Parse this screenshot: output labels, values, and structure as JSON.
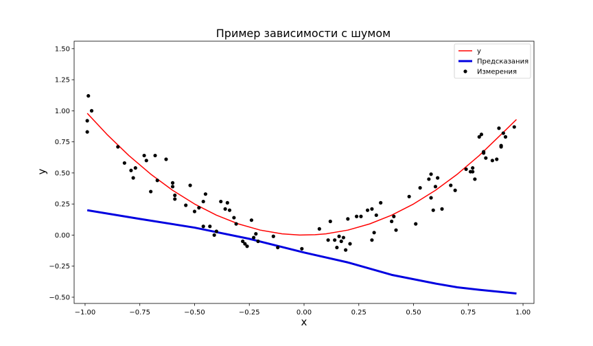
{
  "chart_data": {
    "type": "scatter",
    "title": "Пример зависимости с шумом",
    "xlabel": "x",
    "ylabel": "y",
    "xlim": [
      -1.05,
      1.05
    ],
    "ylim": [
      -0.55,
      1.56
    ],
    "xticks": [
      "−1.00",
      "−0.75",
      "−0.50",
      "−0.25",
      "0.00",
      "0.25",
      "0.50",
      "0.75",
      "1.00"
    ],
    "xtick_values": [
      -1.0,
      -0.75,
      -0.5,
      -0.25,
      0.0,
      0.25,
      0.5,
      0.75,
      1.0
    ],
    "yticks": [
      "−0.50",
      "−0.25",
      "0.00",
      "0.25",
      "0.50",
      "0.75",
      "1.00",
      "1.25",
      "1.50"
    ],
    "ytick_values": [
      -0.5,
      -0.25,
      0.0,
      0.25,
      0.5,
      0.75,
      1.0,
      1.25,
      1.5
    ],
    "grid": false,
    "legend_position": "top-right",
    "series": [
      {
        "name": "y",
        "kind": "line",
        "color": "#ff0000",
        "x": [
          -0.99,
          -0.9,
          -0.8,
          -0.7,
          -0.6,
          -0.5,
          -0.4,
          -0.3,
          -0.2,
          -0.1,
          -0.02,
          0.05,
          0.1,
          0.2,
          0.3,
          0.4,
          0.5,
          0.6,
          0.7,
          0.8,
          0.9,
          0.97
        ],
        "y": [
          0.98,
          0.81,
          0.64,
          0.49,
          0.36,
          0.25,
          0.16,
          0.09,
          0.04,
          0.01,
          0.0,
          0.003,
          0.01,
          0.04,
          0.09,
          0.16,
          0.25,
          0.36,
          0.49,
          0.64,
          0.81,
          0.93
        ]
      },
      {
        "name": "Предсказания",
        "kind": "line",
        "color": "#0000e0",
        "x": [
          -0.99,
          -0.75,
          -0.5,
          -0.25,
          0.0,
          0.2,
          0.4,
          0.6,
          0.7,
          0.8,
          0.97
        ],
        "y": [
          0.2,
          0.13,
          0.06,
          -0.03,
          -0.14,
          -0.22,
          -0.32,
          -0.39,
          -0.42,
          -0.44,
          -0.47
        ]
      },
      {
        "name": "Измерения",
        "kind": "scatter",
        "color": "#000000",
        "x": [
          -0.99,
          -0.99,
          -0.985,
          -0.97,
          -0.85,
          -0.82,
          -0.79,
          -0.78,
          -0.77,
          -0.73,
          -0.72,
          -0.7,
          -0.68,
          -0.67,
          -0.63,
          -0.6,
          -0.59,
          -0.59,
          -0.6,
          -0.54,
          -0.52,
          -0.5,
          -0.48,
          -0.46,
          -0.45,
          -0.46,
          -0.43,
          -0.4,
          -0.41,
          -0.38,
          -0.36,
          -0.35,
          -0.34,
          -0.32,
          -0.31,
          -0.28,
          -0.27,
          -0.26,
          -0.24,
          -0.23,
          -0.22,
          -0.21,
          -0.14,
          -0.12,
          -0.01,
          0.07,
          0.11,
          0.12,
          0.14,
          0.15,
          0.16,
          0.17,
          0.18,
          0.19,
          0.2,
          0.21,
          0.24,
          0.26,
          0.29,
          0.31,
          0.31,
          0.32,
          0.33,
          0.35,
          0.4,
          0.41,
          0.42,
          0.48,
          0.51,
          0.53,
          0.57,
          0.58,
          0.58,
          0.59,
          0.6,
          0.61,
          0.63,
          0.67,
          0.69,
          0.74,
          0.76,
          0.77,
          0.77,
          0.78,
          0.8,
          0.81,
          0.82,
          0.82,
          0.83,
          0.86,
          0.88,
          0.89,
          0.9,
          0.9,
          0.91,
          0.92,
          0.96
        ],
        "y": [
          0.83,
          0.92,
          1.12,
          1.0,
          0.71,
          0.58,
          0.52,
          0.46,
          0.54,
          0.64,
          0.6,
          0.35,
          0.64,
          0.44,
          0.61,
          0.39,
          0.32,
          0.29,
          0.42,
          0.24,
          0.4,
          0.19,
          0.22,
          0.07,
          0.33,
          0.27,
          0.07,
          0.03,
          0.0,
          0.27,
          0.21,
          0.26,
          0.2,
          0.14,
          0.09,
          -0.05,
          -0.07,
          -0.09,
          0.12,
          -0.02,
          0.01,
          -0.05,
          -0.01,
          -0.1,
          -0.11,
          0.05,
          -0.04,
          0.11,
          -0.04,
          -0.1,
          -0.01,
          -0.05,
          -0.02,
          -0.12,
          0.13,
          -0.07,
          0.15,
          0.15,
          0.2,
          0.21,
          -0.04,
          0.02,
          0.16,
          0.26,
          0.11,
          0.15,
          0.04,
          0.31,
          0.09,
          0.38,
          0.45,
          0.49,
          0.3,
          0.2,
          0.39,
          0.46,
          0.21,
          0.4,
          0.36,
          0.53,
          0.51,
          0.54,
          0.51,
          0.45,
          0.79,
          0.81,
          0.66,
          0.67,
          0.62,
          0.6,
          0.61,
          0.86,
          0.72,
          0.71,
          0.82,
          0.79,
          0.87
        ]
      }
    ]
  }
}
